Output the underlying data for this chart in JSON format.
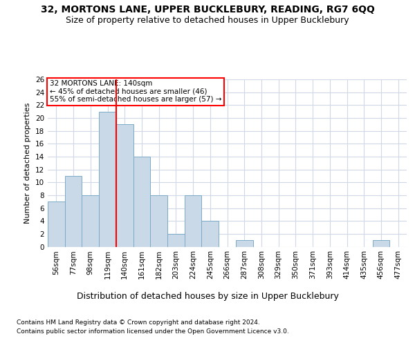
{
  "title1": "32, MORTONS LANE, UPPER BUCKLEBURY, READING, RG7 6QQ",
  "title2": "Size of property relative to detached houses in Upper Bucklebury",
  "xlabel": "Distribution of detached houses by size in Upper Bucklebury",
  "ylabel": "Number of detached properties",
  "footnote1": "Contains HM Land Registry data © Crown copyright and database right 2024.",
  "footnote2": "Contains public sector information licensed under the Open Government Licence v3.0.",
  "bar_labels": [
    "56sqm",
    "77sqm",
    "98sqm",
    "119sqm",
    "140sqm",
    "161sqm",
    "182sqm",
    "203sqm",
    "224sqm",
    "245sqm",
    "266sqm",
    "287sqm",
    "308sqm",
    "329sqm",
    "350sqm",
    "371sqm",
    "393sqm",
    "414sqm",
    "435sqm",
    "456sqm",
    "477sqm"
  ],
  "bar_values": [
    7,
    11,
    8,
    21,
    19,
    14,
    8,
    2,
    8,
    4,
    0,
    1,
    0,
    0,
    0,
    0,
    0,
    0,
    0,
    1,
    0
  ],
  "bar_color": "#c9d9e8",
  "bar_edge_color": "#7aaac8",
  "red_line_x": 3.5,
  "red_line_label": "32 MORTONS LANE: 140sqm",
  "annotation_line2": "← 45% of detached houses are smaller (46)",
  "annotation_line3": "55% of semi-detached houses are larger (57) →",
  "annotation_box_color": "white",
  "annotation_box_edge_color": "red",
  "ylim": [
    0,
    26
  ],
  "yticks": [
    0,
    2,
    4,
    6,
    8,
    10,
    12,
    14,
    16,
    18,
    20,
    22,
    24,
    26
  ],
  "grid_color": "#d0d8e8",
  "background_color": "white",
  "title1_fontsize": 10,
  "title2_fontsize": 9,
  "xlabel_fontsize": 9,
  "ylabel_fontsize": 8,
  "tick_fontsize": 7.5,
  "annotation_fontsize": 7.5,
  "footnote_fontsize": 6.5
}
